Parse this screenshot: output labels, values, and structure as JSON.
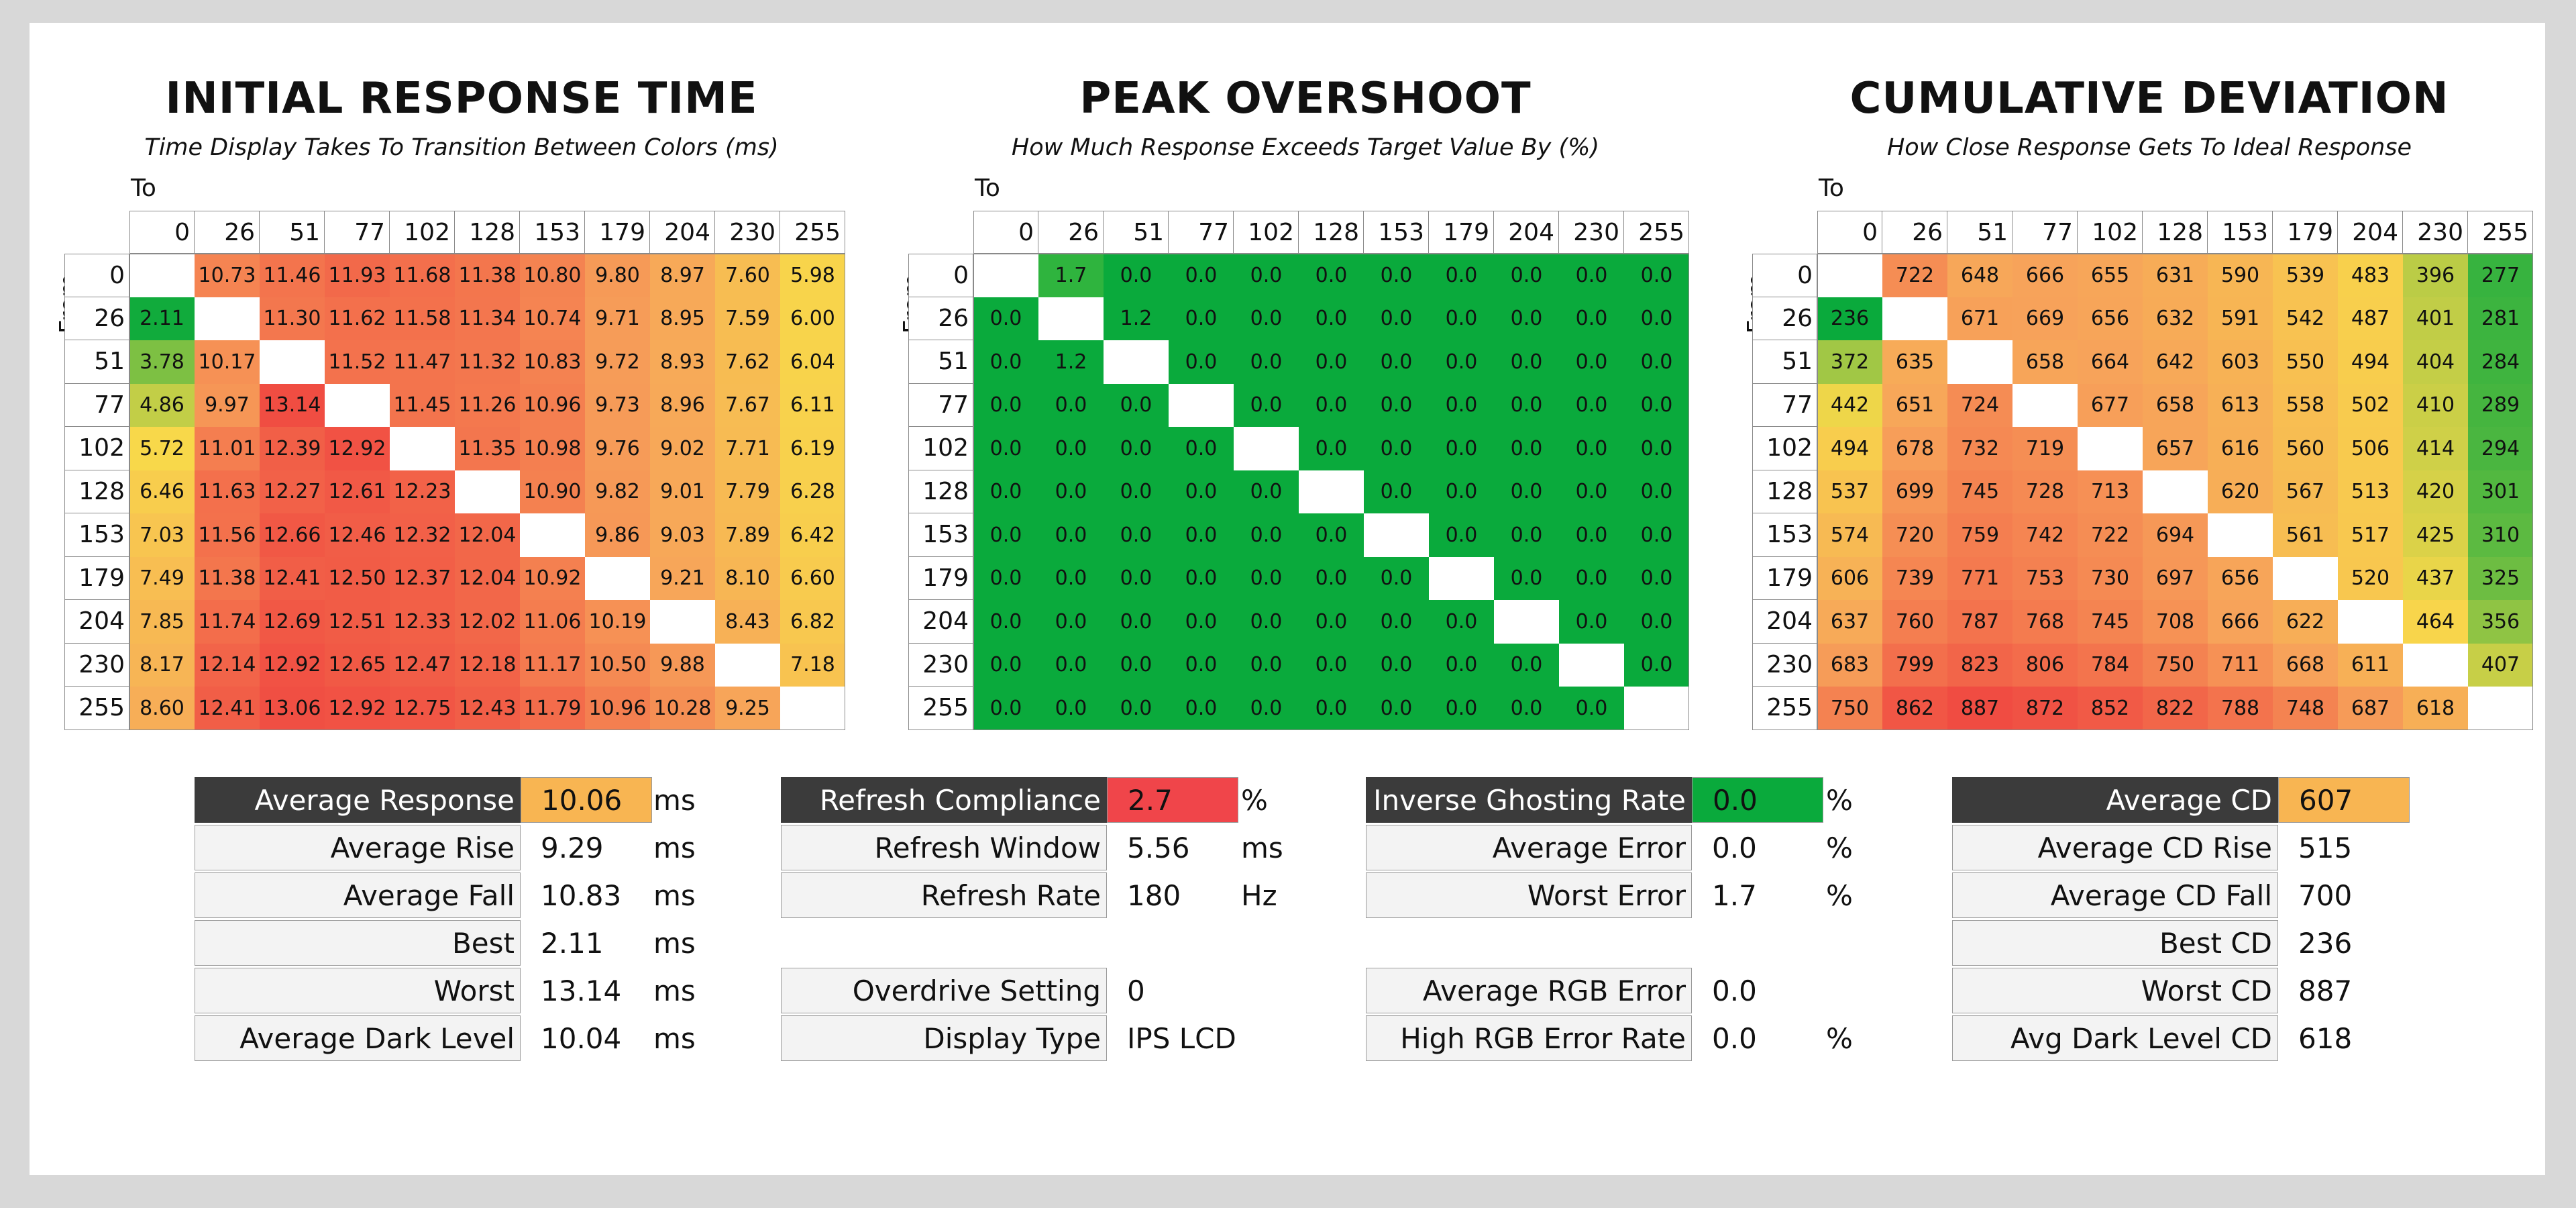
{
  "chart_data": [
    {
      "type": "heatmap",
      "title": "INITIAL RESPONSE TIME",
      "subtitle": "Time Display Takes To Transition Between Colors (ms)",
      "xlabel": "To",
      "ylabel": "From",
      "x": [
        "0",
        "26",
        "51",
        "77",
        "102",
        "128",
        "153",
        "179",
        "204",
        "230",
        "255"
      ],
      "y": [
        "0",
        "26",
        "51",
        "77",
        "102",
        "128",
        "153",
        "179",
        "204",
        "230",
        "255"
      ],
      "values": [
        [
          null,
          "10.73",
          "11.46",
          "11.93",
          "11.68",
          "11.38",
          "10.80",
          "9.80",
          "8.97",
          "7.60",
          "5.98"
        ],
        [
          "2.11",
          null,
          "11.30",
          "11.62",
          "11.58",
          "11.34",
          "10.74",
          "9.71",
          "8.95",
          "7.59",
          "6.00"
        ],
        [
          "3.78",
          "10.17",
          null,
          "11.52",
          "11.47",
          "11.32",
          "10.83",
          "9.72",
          "8.93",
          "7.62",
          "6.04"
        ],
        [
          "4.86",
          "9.97",
          "13.14",
          null,
          "11.45",
          "11.26",
          "10.96",
          "9.73",
          "8.96",
          "7.67",
          "6.11"
        ],
        [
          "5.72",
          "11.01",
          "12.39",
          "12.92",
          null,
          "11.35",
          "10.98",
          "9.76",
          "9.02",
          "7.71",
          "6.19"
        ],
        [
          "6.46",
          "11.63",
          "12.27",
          "12.61",
          "12.23",
          null,
          "10.90",
          "9.82",
          "9.01",
          "7.79",
          "6.28"
        ],
        [
          "7.03",
          "11.56",
          "12.66",
          "12.46",
          "12.32",
          "12.04",
          null,
          "9.86",
          "9.03",
          "7.89",
          "6.42"
        ],
        [
          "7.49",
          "11.38",
          "12.41",
          "12.50",
          "12.37",
          "12.04",
          "10.92",
          null,
          "9.21",
          "8.10",
          "6.60"
        ],
        [
          "7.85",
          "11.74",
          "12.69",
          "12.51",
          "12.33",
          "12.02",
          "11.06",
          "10.19",
          null,
          "8.43",
          "6.82"
        ],
        [
          "8.17",
          "12.14",
          "12.92",
          "12.65",
          "12.47",
          "12.18",
          "11.17",
          "10.50",
          "9.88",
          null,
          "7.18"
        ],
        [
          "8.60",
          "12.41",
          "13.06",
          "12.92",
          "12.75",
          "12.43",
          "11.79",
          "10.96",
          "10.28",
          "9.25",
          null
        ]
      ]
    },
    {
      "type": "heatmap",
      "title": "PEAK OVERSHOOT",
      "subtitle": "How Much Response Exceeds Target Value By (%)",
      "xlabel": "To",
      "ylabel": "From",
      "x": [
        "0",
        "26",
        "51",
        "77",
        "102",
        "128",
        "153",
        "179",
        "204",
        "230",
        "255"
      ],
      "y": [
        "0",
        "26",
        "51",
        "77",
        "102",
        "128",
        "153",
        "179",
        "204",
        "230",
        "255"
      ],
      "values": [
        [
          null,
          "1.7",
          "0.0",
          "0.0",
          "0.0",
          "0.0",
          "0.0",
          "0.0",
          "0.0",
          "0.0",
          "0.0"
        ],
        [
          "0.0",
          null,
          "1.2",
          "0.0",
          "0.0",
          "0.0",
          "0.0",
          "0.0",
          "0.0",
          "0.0",
          "0.0"
        ],
        [
          "0.0",
          "1.2",
          null,
          "0.0",
          "0.0",
          "0.0",
          "0.0",
          "0.0",
          "0.0",
          "0.0",
          "0.0"
        ],
        [
          "0.0",
          "0.0",
          "0.0",
          null,
          "0.0",
          "0.0",
          "0.0",
          "0.0",
          "0.0",
          "0.0",
          "0.0"
        ],
        [
          "0.0",
          "0.0",
          "0.0",
          "0.0",
          null,
          "0.0",
          "0.0",
          "0.0",
          "0.0",
          "0.0",
          "0.0"
        ],
        [
          "0.0",
          "0.0",
          "0.0",
          "0.0",
          "0.0",
          null,
          "0.0",
          "0.0",
          "0.0",
          "0.0",
          "0.0"
        ],
        [
          "0.0",
          "0.0",
          "0.0",
          "0.0",
          "0.0",
          "0.0",
          null,
          "0.0",
          "0.0",
          "0.0",
          "0.0"
        ],
        [
          "0.0",
          "0.0",
          "0.0",
          "0.0",
          "0.0",
          "0.0",
          "0.0",
          null,
          "0.0",
          "0.0",
          "0.0"
        ],
        [
          "0.0",
          "0.0",
          "0.0",
          "0.0",
          "0.0",
          "0.0",
          "0.0",
          "0.0",
          null,
          "0.0",
          "0.0"
        ],
        [
          "0.0",
          "0.0",
          "0.0",
          "0.0",
          "0.0",
          "0.0",
          "0.0",
          "0.0",
          "0.0",
          null,
          "0.0"
        ],
        [
          "0.0",
          "0.0",
          "0.0",
          "0.0",
          "0.0",
          "0.0",
          "0.0",
          "0.0",
          "0.0",
          "0.0",
          null
        ]
      ]
    },
    {
      "type": "heatmap",
      "title": "CUMULATIVE DEVIATION",
      "subtitle": "How Close Response Gets To Ideal Response",
      "xlabel": "To",
      "ylabel": "From",
      "x": [
        "0",
        "26",
        "51",
        "77",
        "102",
        "128",
        "153",
        "179",
        "204",
        "230",
        "255"
      ],
      "y": [
        "0",
        "26",
        "51",
        "77",
        "102",
        "128",
        "153",
        "179",
        "204",
        "230",
        "255"
      ],
      "values": [
        [
          null,
          "722",
          "648",
          "666",
          "655",
          "631",
          "590",
          "539",
          "483",
          "396",
          "277"
        ],
        [
          "236",
          null,
          "671",
          "669",
          "656",
          "632",
          "591",
          "542",
          "487",
          "401",
          "281"
        ],
        [
          "372",
          "635",
          null,
          "658",
          "664",
          "642",
          "603",
          "550",
          "494",
          "404",
          "284"
        ],
        [
          "442",
          "651",
          "724",
          null,
          "677",
          "658",
          "613",
          "558",
          "502",
          "410",
          "289"
        ],
        [
          "494",
          "678",
          "732",
          "719",
          null,
          "657",
          "616",
          "560",
          "506",
          "414",
          "294"
        ],
        [
          "537",
          "699",
          "745",
          "728",
          "713",
          null,
          "620",
          "567",
          "513",
          "420",
          "301"
        ],
        [
          "574",
          "720",
          "759",
          "742",
          "722",
          "694",
          null,
          "561",
          "517",
          "425",
          "310"
        ],
        [
          "606",
          "739",
          "771",
          "753",
          "730",
          "697",
          "656",
          null,
          "520",
          "437",
          "325"
        ],
        [
          "637",
          "760",
          "787",
          "768",
          "745",
          "708",
          "666",
          "622",
          null,
          "464",
          "356"
        ],
        [
          "683",
          "799",
          "823",
          "806",
          "784",
          "750",
          "711",
          "668",
          "611",
          null,
          "407"
        ],
        [
          "750",
          "862",
          "887",
          "872",
          "852",
          "822",
          "788",
          "748",
          "687",
          "618",
          null
        ]
      ]
    }
  ],
  "stats": {
    "response": [
      {
        "label": "Average Response",
        "value": "10.06",
        "unit": "ms",
        "highlight": "#f8b552",
        "dark": true
      },
      {
        "label": "Average Rise",
        "value": "9.29",
        "unit": "ms"
      },
      {
        "label": "Average Fall",
        "value": "10.83",
        "unit": "ms"
      },
      {
        "label": "Best",
        "value": "2.11",
        "unit": "ms"
      },
      {
        "label": "Worst",
        "value": "13.14",
        "unit": "ms"
      },
      {
        "label": "Average Dark Level",
        "value": "10.04",
        "unit": "ms"
      }
    ],
    "refresh": [
      {
        "label": "Refresh Compliance",
        "value": "2.7",
        "unit": "%",
        "highlight": "#f0454a",
        "dark": true,
        "row": 0
      },
      {
        "label": "Refresh Window",
        "value": "5.56",
        "unit": "ms",
        "row": 1
      },
      {
        "label": "Refresh Rate",
        "value": "180",
        "unit": "Hz",
        "row": 2
      },
      {
        "label": "Overdrive Setting",
        "value": "0",
        "unit": "",
        "row": 4
      },
      {
        "label": "Display Type",
        "value": "IPS LCD",
        "unit": "",
        "row": 5
      }
    ],
    "overshoot": [
      {
        "label": "Inverse Ghosting Rate",
        "value": "0.0",
        "unit": "%",
        "highlight": "#0aaa3c",
        "dark": true,
        "row": 0
      },
      {
        "label": "Average Error",
        "value": "0.0",
        "unit": "%",
        "row": 1
      },
      {
        "label": "Worst Error",
        "value": "1.7",
        "unit": "%",
        "row": 2
      },
      {
        "label": "Average RGB Error",
        "value": "0.0",
        "unit": "",
        "row": 4
      },
      {
        "label": "High RGB Error Rate",
        "value": "0.0",
        "unit": "%",
        "row": 5
      }
    ],
    "cd": [
      {
        "label": "Average CD",
        "value": "607",
        "unit": "",
        "highlight": "#f8b552",
        "dark": true
      },
      {
        "label": "Average CD Rise",
        "value": "515",
        "unit": ""
      },
      {
        "label": "Average CD Fall",
        "value": "700",
        "unit": ""
      },
      {
        "label": "Best CD",
        "value": "236",
        "unit": ""
      },
      {
        "label": "Worst CD",
        "value": "887",
        "unit": ""
      },
      {
        "label": "Avg Dark Level CD",
        "value": "618",
        "unit": ""
      }
    ]
  },
  "colors": {
    "green": "#0aaa3c",
    "yellow": "#f8d84a",
    "orange": "#f7a35a",
    "red": "#f04c42",
    "label_dark": "#3b3b3b",
    "label_light": "#f3f3f3"
  }
}
